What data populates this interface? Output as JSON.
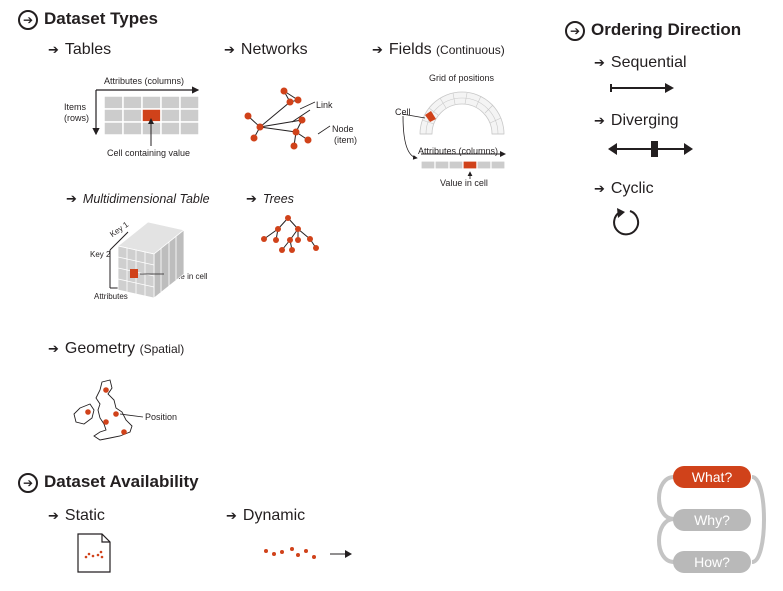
{
  "dataset_types": {
    "heading": "Dataset Types",
    "tables": {
      "title": "Tables",
      "attributes_label": "Attributes (columns)",
      "items_label_1": "Items",
      "items_label_2": "(rows)",
      "cell_label": "Cell containing value"
    },
    "networks": {
      "title": "Networks",
      "link_label": "Link",
      "node_label_1": "Node",
      "node_label_2": "(item)"
    },
    "fields": {
      "title": "Fields",
      "subtitle": "(Continuous)",
      "grid_label": "Grid of positions",
      "cell_label": "Cell",
      "attributes_label": "Attributes (columns)",
      "value_label": "Value in cell"
    },
    "multidim": {
      "title": "Multidimensional Table",
      "key1_label": "Key 1",
      "key2_label": "Key 2",
      "attributes_label": "Attributes",
      "value_label": "Value in cell"
    },
    "trees": {
      "title": "Trees"
    },
    "geometry": {
      "title": "Geometry",
      "subtitle": "(Spatial)",
      "position_label": "Position"
    }
  },
  "ordering": {
    "heading": "Ordering Direction",
    "items": [
      "Sequential",
      "Diverging",
      "Cyclic"
    ]
  },
  "availability": {
    "heading": "Dataset Availability",
    "static_label": "Static",
    "dynamic_label": "Dynamic"
  },
  "nav": {
    "what": "What?",
    "why": "Why?",
    "how": "How?"
  },
  "colors": {
    "accent": "#d0421a",
    "text": "#231f20",
    "grid": "#c8c8c8",
    "pill_inactive": "#b9b9b9"
  }
}
